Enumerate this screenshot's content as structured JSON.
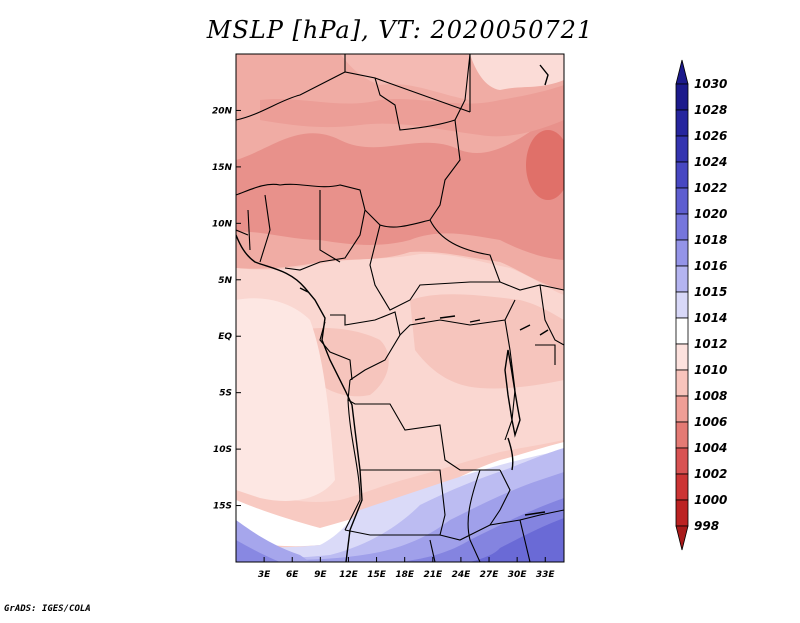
{
  "title": "MSLP [hPa], VT: 2020050721",
  "credit": "GrADS: IGES/COLA",
  "map": {
    "lon_range": [
      0,
      35
    ],
    "lat_range": [
      -20,
      25
    ],
    "lat_ticks": [
      "20N",
      "15N",
      "10N",
      "5N",
      "EQ",
      "5S",
      "10S",
      "15S"
    ],
    "lat_tick_values": [
      20,
      15,
      10,
      5,
      0,
      -5,
      -10,
      -15
    ],
    "lon_ticks": [
      "3E",
      "6E",
      "9E",
      "12E",
      "15E",
      "18E",
      "21E",
      "24E",
      "27E",
      "30E",
      "33E"
    ],
    "lon_tick_values": [
      3,
      6,
      9,
      12,
      15,
      18,
      21,
      24,
      27,
      30,
      33
    ]
  },
  "colorbar": {
    "labels": [
      "1030",
      "1028",
      "1026",
      "1024",
      "1022",
      "1020",
      "1018",
      "1016",
      "1015",
      "1014",
      "1012",
      "1010",
      "1008",
      "1006",
      "1004",
      "1002",
      "1000",
      "998"
    ],
    "colors": [
      "#1c1a8c",
      "#26259e",
      "#3434b0",
      "#4747c2",
      "#5e5ed0",
      "#7676dc",
      "#9494e8",
      "#b4b4f0",
      "#d8d8f8",
      "#ffffff",
      "#fde2de",
      "#f8c4bc",
      "#ef9e96",
      "#e47a74",
      "#d85252",
      "#cc3434",
      "#bc2222",
      "#a81a1a"
    ]
  }
}
